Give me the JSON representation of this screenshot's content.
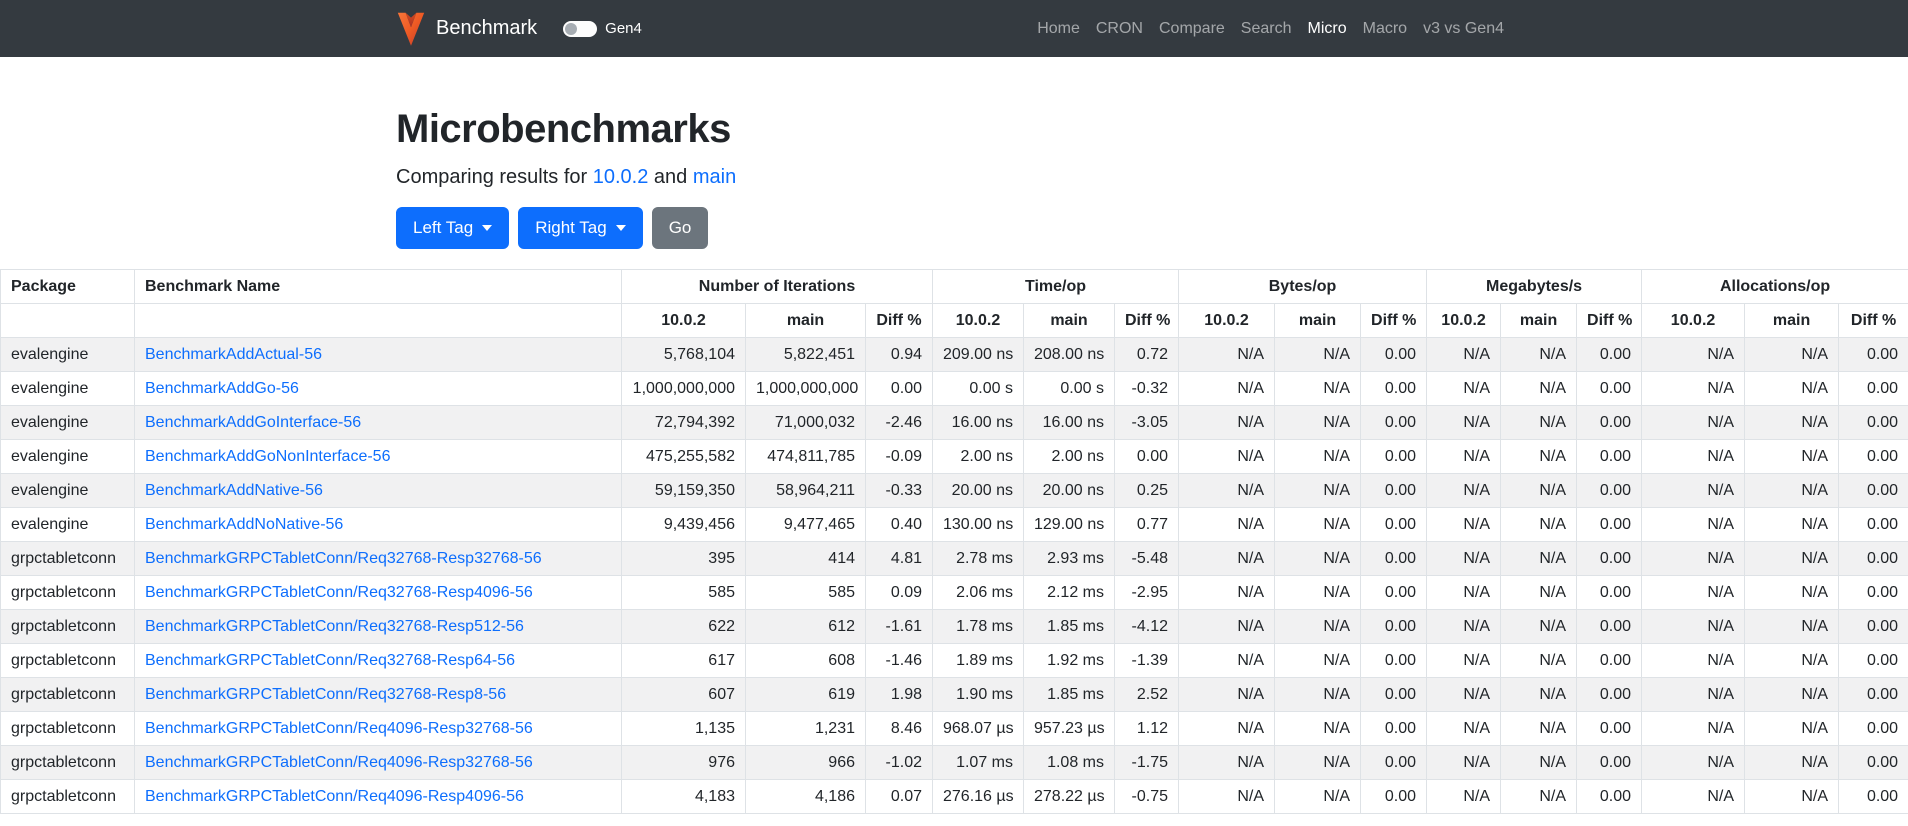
{
  "navbar": {
    "brand": "Benchmark",
    "toggle_label": "Gen4",
    "links": [
      {
        "label": "Home",
        "active": false
      },
      {
        "label": "CRON",
        "active": false
      },
      {
        "label": "Compare",
        "active": false
      },
      {
        "label": "Search",
        "active": false
      },
      {
        "label": "Micro",
        "active": true
      },
      {
        "label": "Macro",
        "active": false
      },
      {
        "label": "v3 vs Gen4",
        "active": false
      }
    ]
  },
  "header": {
    "title": "Microbenchmarks",
    "subtitle_prefix": "Comparing results for",
    "left_ref": "10.0.2",
    "subtitle_and": "and",
    "right_ref": "main",
    "left_tag_button": "Left Tag",
    "right_tag_button": "Right Tag",
    "go_button": "Go"
  },
  "colors": {
    "navbar_bg": "#343a40",
    "accent_blue": "#0d6efd",
    "secondary_gray": "#6c757d",
    "link_blue": "#0d6efd",
    "stripe": "#f1f1f2",
    "border": "#dee2e6",
    "logo_orange": "#f16728",
    "logo_red": "#d73c28"
  },
  "table": {
    "col_package": "Package",
    "col_benchmark": "Benchmark Name",
    "groups": [
      {
        "label": "Number of Iterations"
      },
      {
        "label": "Time/op"
      },
      {
        "label": "Bytes/op"
      },
      {
        "label": "Megabytes/s"
      },
      {
        "label": "Allocations/op"
      }
    ],
    "sub_headers": [
      "10.0.2",
      "main",
      "Diff %"
    ],
    "rows": [
      {
        "package": "evalengine",
        "name": "BenchmarkAddActual-56",
        "values": [
          "5,768,104",
          "5,822,451",
          "0.94",
          "209.00 ns",
          "208.00 ns",
          "0.72",
          "N/A",
          "N/A",
          "0.00",
          "N/A",
          "N/A",
          "0.00",
          "N/A",
          "N/A",
          "0.00"
        ]
      },
      {
        "package": "evalengine",
        "name": "BenchmarkAddGo-56",
        "values": [
          "1,000,000,000",
          "1,000,000,000",
          "0.00",
          "0.00 s",
          "0.00 s",
          "-0.32",
          "N/A",
          "N/A",
          "0.00",
          "N/A",
          "N/A",
          "0.00",
          "N/A",
          "N/A",
          "0.00"
        ]
      },
      {
        "package": "evalengine",
        "name": "BenchmarkAddGoInterface-56",
        "values": [
          "72,794,392",
          "71,000,032",
          "-2.46",
          "16.00 ns",
          "16.00 ns",
          "-3.05",
          "N/A",
          "N/A",
          "0.00",
          "N/A",
          "N/A",
          "0.00",
          "N/A",
          "N/A",
          "0.00"
        ]
      },
      {
        "package": "evalengine",
        "name": "BenchmarkAddGoNonInterface-56",
        "values": [
          "475,255,582",
          "474,811,785",
          "-0.09",
          "2.00 ns",
          "2.00 ns",
          "0.00",
          "N/A",
          "N/A",
          "0.00",
          "N/A",
          "N/A",
          "0.00",
          "N/A",
          "N/A",
          "0.00"
        ]
      },
      {
        "package": "evalengine",
        "name": "BenchmarkAddNative-56",
        "values": [
          "59,159,350",
          "58,964,211",
          "-0.33",
          "20.00 ns",
          "20.00 ns",
          "0.25",
          "N/A",
          "N/A",
          "0.00",
          "N/A",
          "N/A",
          "0.00",
          "N/A",
          "N/A",
          "0.00"
        ]
      },
      {
        "package": "evalengine",
        "name": "BenchmarkAddNoNative-56",
        "values": [
          "9,439,456",
          "9,477,465",
          "0.40",
          "130.00 ns",
          "129.00 ns",
          "0.77",
          "N/A",
          "N/A",
          "0.00",
          "N/A",
          "N/A",
          "0.00",
          "N/A",
          "N/A",
          "0.00"
        ]
      },
      {
        "package": "grpctabletconn",
        "name": "BenchmarkGRPCTabletConn/Req32768-Resp32768-56",
        "values": [
          "395",
          "414",
          "4.81",
          "2.78 ms",
          "2.93 ms",
          "-5.48",
          "N/A",
          "N/A",
          "0.00",
          "N/A",
          "N/A",
          "0.00",
          "N/A",
          "N/A",
          "0.00"
        ]
      },
      {
        "package": "grpctabletconn",
        "name": "BenchmarkGRPCTabletConn/Req32768-Resp4096-56",
        "values": [
          "585",
          "585",
          "0.09",
          "2.06 ms",
          "2.12 ms",
          "-2.95",
          "N/A",
          "N/A",
          "0.00",
          "N/A",
          "N/A",
          "0.00",
          "N/A",
          "N/A",
          "0.00"
        ]
      },
      {
        "package": "grpctabletconn",
        "name": "BenchmarkGRPCTabletConn/Req32768-Resp512-56",
        "values": [
          "622",
          "612",
          "-1.61",
          "1.78 ms",
          "1.85 ms",
          "-4.12",
          "N/A",
          "N/A",
          "0.00",
          "N/A",
          "N/A",
          "0.00",
          "N/A",
          "N/A",
          "0.00"
        ]
      },
      {
        "package": "grpctabletconn",
        "name": "BenchmarkGRPCTabletConn/Req32768-Resp64-56",
        "values": [
          "617",
          "608",
          "-1.46",
          "1.89 ms",
          "1.92 ms",
          "-1.39",
          "N/A",
          "N/A",
          "0.00",
          "N/A",
          "N/A",
          "0.00",
          "N/A",
          "N/A",
          "0.00"
        ]
      },
      {
        "package": "grpctabletconn",
        "name": "BenchmarkGRPCTabletConn/Req32768-Resp8-56",
        "values": [
          "607",
          "619",
          "1.98",
          "1.90 ms",
          "1.85 ms",
          "2.52",
          "N/A",
          "N/A",
          "0.00",
          "N/A",
          "N/A",
          "0.00",
          "N/A",
          "N/A",
          "0.00"
        ]
      },
      {
        "package": "grpctabletconn",
        "name": "BenchmarkGRPCTabletConn/Req4096-Resp32768-56",
        "values": [
          "1,135",
          "1,231",
          "8.46",
          "968.07 µs",
          "957.23 µs",
          "1.12",
          "N/A",
          "N/A",
          "0.00",
          "N/A",
          "N/A",
          "0.00",
          "N/A",
          "N/A",
          "0.00"
        ]
      },
      {
        "package": "grpctabletconn",
        "name": "BenchmarkGRPCTabletConn/Req4096-Resp32768-56",
        "values": [
          "976",
          "966",
          "-1.02",
          "1.07 ms",
          "1.08 ms",
          "-1.75",
          "N/A",
          "N/A",
          "0.00",
          "N/A",
          "N/A",
          "0.00",
          "N/A",
          "N/A",
          "0.00"
        ]
      },
      {
        "package": "grpctabletconn",
        "name": "BenchmarkGRPCTabletConn/Req4096-Resp4096-56",
        "values": [
          "4,183",
          "4,186",
          "0.07",
          "276.16 µs",
          "278.22 µs",
          "-0.75",
          "N/A",
          "N/A",
          "0.00",
          "N/A",
          "N/A",
          "0.00",
          "N/A",
          "N/A",
          "0.00"
        ]
      }
    ]
  }
}
